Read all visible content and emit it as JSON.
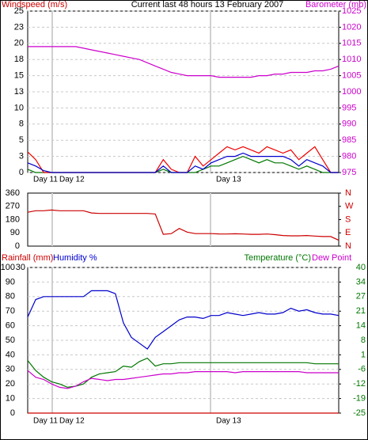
{
  "chart_data": [
    {
      "type": "line",
      "title": "Current last 48 hours 13 February 2007",
      "ylabel": "Windspeed (m/s)",
      "y2label": "Barometer (mb)",
      "ylabel_color": "#cc0000",
      "y2color": "#cc00cc",
      "grid": true,
      "ylim": [
        0,
        25
      ],
      "yticks": [
        0,
        {
          "value": 2.5,
          "label": "3"
        },
        5,
        {
          "value": 7.5,
          "label": "8"
        },
        10,
        {
          "value": 12.5,
          "label": "13"
        },
        15,
        {
          "value": 17.5,
          "label": "18"
        },
        20,
        {
          "value": 22.5,
          "label": "23"
        },
        25
      ],
      "y2lim": [
        975,
        1025
      ],
      "y2ticks": [
        975,
        980,
        985,
        990,
        995,
        1000,
        1005,
        1010,
        1015,
        1020,
        1025
      ],
      "day_labels": [
        "Day 11",
        "Day 12",
        "Day 13"
      ],
      "series": [
        {
          "color": "#007700",
          "values": [
            0.5,
            0,
            0,
            0,
            0,
            0,
            0,
            0,
            0,
            0,
            0,
            0,
            0,
            0,
            0,
            0,
            0,
            0.5,
            0,
            0,
            0,
            0,
            0.5,
            1,
            1,
            1.5,
            2,
            2.5,
            2,
            1.5,
            2,
            1.5,
            1.5,
            1,
            0.5,
            1,
            0.5,
            0,
            0,
            0
          ]
        },
        {
          "color": "#ee0000",
          "values": [
            3.2,
            2,
            0,
            0,
            0,
            0,
            0,
            0,
            0,
            0,
            0,
            0,
            0,
            0,
            0,
            0,
            0,
            2,
            0.5,
            0,
            0,
            2.5,
            1,
            2,
            3,
            4,
            3.5,
            4,
            3.5,
            3,
            4,
            3.5,
            3,
            3.5,
            2,
            3,
            4,
            2,
            0,
            0
          ]
        },
        {
          "color": "#0000cc",
          "values": [
            1.5,
            1,
            0.3,
            0,
            0,
            0,
            0,
            0,
            0,
            0,
            0,
            0,
            0,
            0,
            0,
            0,
            0,
            1,
            0,
            0,
            0,
            1,
            0.5,
            1.5,
            2,
            2.5,
            2.5,
            3,
            2.5,
            2.5,
            2.5,
            2.5,
            2.5,
            2,
            1,
            2,
            1.5,
            1,
            0,
            0
          ]
        },
        {
          "color": "#cc00cc",
          "axis": "y2",
          "values": [
            1014,
            1014,
            1014,
            1014,
            1014,
            1014,
            1014,
            1013.5,
            1013,
            1012.5,
            1012,
            1011.5,
            1011,
            1010.5,
            1010,
            1009,
            1008,
            1007,
            1006,
            1005.5,
            1005,
            1005,
            1005,
            1005,
            1004.5,
            1004.5,
            1004.5,
            1004.5,
            1004.5,
            1005,
            1005,
            1005.5,
            1005.5,
            1006,
            1006,
            1006,
            1006.5,
            1006.5,
            1007,
            1008
          ]
        }
      ]
    },
    {
      "type": "line",
      "y2color": "#cc0000",
      "grid": false,
      "ylim": [
        0,
        360
      ],
      "yticks": [
        0,
        90,
        180,
        270,
        360
      ],
      "y2lim": [
        0,
        360
      ],
      "y2ticks": [
        {
          "value": 0,
          "label": "N"
        },
        {
          "value": 90,
          "label": "E"
        },
        {
          "value": 180,
          "label": "S"
        },
        {
          "value": 270,
          "label": "W"
        },
        {
          "value": 360,
          "label": "N"
        }
      ],
      "series": [
        {
          "color": "#cc0000",
          "values": [
            230,
            240,
            240,
            245,
            240,
            240,
            240,
            240,
            225,
            222,
            222,
            222,
            222,
            222,
            222,
            222,
            218,
            80,
            85,
            120,
            95,
            85,
            85,
            85,
            83,
            82,
            84,
            82,
            80,
            80,
            82,
            78,
            72,
            70,
            70,
            72,
            68,
            65,
            65,
            40
          ]
        }
      ]
    },
    {
      "type": "line",
      "y2color": "#007700",
      "grid": true,
      "ylim": [
        0,
        100
      ],
      "yticks": [
        0,
        10,
        20,
        30,
        40,
        50,
        60,
        70,
        80,
        90,
        100
      ],
      "y3lim": [
        0,
        30
      ],
      "y3ticks": [
        30
      ],
      "y2lim": [
        -25,
        40
      ],
      "y2ticks": [
        -25,
        {
          "value": -18.5,
          "label": "-19"
        },
        -12,
        {
          "value": -5.5,
          "label": "-6"
        },
        1,
        {
          "value": 7.5,
          "label": "8"
        },
        14,
        {
          "value": 20.5,
          "label": "21"
        },
        27,
        {
          "value": 33.5,
          "label": "34"
        },
        40
      ],
      "day_labels": [
        "Day 11",
        "Day 12",
        "Day 13"
      ],
      "series": [
        {
          "name": "Rainfall (mm)",
          "color": "#cc0000",
          "axis": "y3",
          "values": [
            0,
            0,
            0,
            0,
            0,
            0,
            0,
            0,
            0,
            0,
            0,
            0,
            0,
            0,
            0,
            0,
            0,
            0,
            0,
            0,
            0,
            0,
            0,
            0,
            0,
            0,
            0,
            0,
            0,
            0,
            0,
            0,
            0,
            0,
            0,
            0,
            0,
            0,
            0,
            0
          ]
        },
        {
          "name": "Humidity %",
          "color": "#0000cc",
          "values": [
            66,
            78,
            80,
            80,
            80,
            80,
            80,
            80,
            84,
            84,
            84,
            82,
            62,
            52,
            48,
            44,
            52,
            56,
            60,
            64,
            66,
            66,
            65,
            67,
            67,
            69,
            68,
            67,
            68,
            69,
            68,
            68,
            69,
            72,
            70,
            71,
            69,
            68,
            68,
            67
          ]
        },
        {
          "name": "Temperature (°C)",
          "color": "#007700",
          "axis": "y2",
          "values": [
            -1.5,
            -6,
            -9,
            -11,
            -12,
            -13.5,
            -13,
            -12,
            -9,
            -7.5,
            -7,
            -6.5,
            -4,
            -4.5,
            -2,
            -0.5,
            -4,
            -3,
            -3,
            -2.5,
            -2.5,
            -2.5,
            -2.5,
            -2.5,
            -2.5,
            -2.5,
            -2.5,
            -2.5,
            -2.5,
            -2.5,
            -2.5,
            -2.5,
            -2.5,
            -2.5,
            -2.5,
            -2.5,
            -3,
            -3,
            -3,
            -3
          ]
        },
        {
          "name": "Dew Point",
          "color": "#cc00cc",
          "axis": "y2",
          "values": [
            -6,
            -9,
            -10,
            -12,
            -13.5,
            -14,
            -13,
            -11,
            -9.5,
            -10,
            -10.5,
            -10,
            -10,
            -9.5,
            -9,
            -8.5,
            -8,
            -7.5,
            -7.5,
            -7,
            -7,
            -6.5,
            -6.5,
            -6.5,
            -6.5,
            -6.5,
            -7,
            -6.5,
            -6.5,
            -6.5,
            -6.5,
            -6.5,
            -6.5,
            -6.5,
            -6.5,
            -7,
            -7,
            -7,
            -7,
            -7
          ]
        }
      ]
    }
  ]
}
